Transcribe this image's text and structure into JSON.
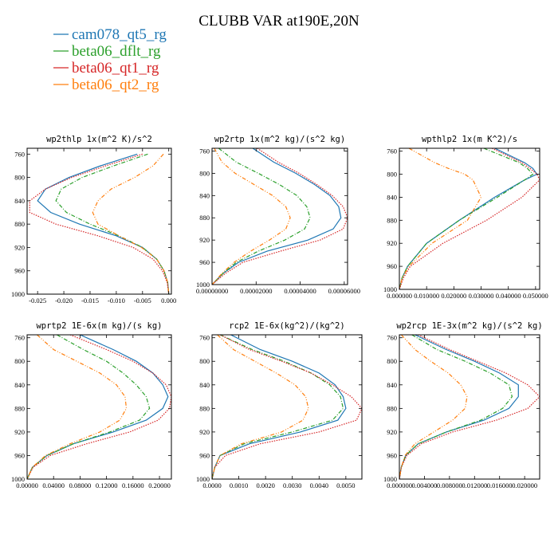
{
  "figure": {
    "title": "CLUBB VAR at190E,20N"
  },
  "legend": [
    {
      "name": "cam078_qt5_rg",
      "color": "#1f77b4",
      "dash": "solid"
    },
    {
      "name": "beta06_dflt_rg",
      "color": "#2ca02c",
      "dash": "dashdot"
    },
    {
      "name": "beta06_qt1_rg",
      "color": "#d62728",
      "dash": "dotted"
    },
    {
      "name": "beta06_qt2_rg",
      "color": "#ff7f0e",
      "dash": "dashdotdot"
    }
  ],
  "chart_data": [
    {
      "type": "line",
      "title": "wp2thlp  1x(m^2 K)/s^2",
      "xlim": [
        -0.027,
        0.0005
      ],
      "ylim": [
        1000,
        750
      ],
      "xticks": [
        -0.025,
        -0.02,
        -0.015,
        -0.01,
        -0.005,
        0.0
      ],
      "xtick_labels": [
        "-0.025",
        "-0.020",
        "-0.015",
        "-0.010",
        "-0.005",
        "0.000"
      ],
      "yticks": [
        760,
        800,
        840,
        880,
        920,
        960,
        1000
      ],
      "ytick_labels": [
        "760",
        "800",
        "840",
        "880",
        "920",
        "960",
        "1000"
      ],
      "y": [
        760,
        780,
        800,
        820,
        840,
        860,
        880,
        900,
        920,
        940,
        960,
        980,
        1000
      ],
      "series": [
        {
          "name": "cam078_qt5_rg",
          "values": [
            -0.006,
            -0.013,
            -0.019,
            -0.0235,
            -0.025,
            -0.0225,
            -0.017,
            -0.01,
            -0.005,
            -0.0023,
            -0.0009,
            -0.0002,
            0.0
          ]
        },
        {
          "name": "beta06_dflt_rg",
          "values": [
            -0.004,
            -0.0105,
            -0.0165,
            -0.0205,
            -0.0215,
            -0.0195,
            -0.015,
            -0.0095,
            -0.005,
            -0.0023,
            -0.0009,
            -0.0002,
            0.0
          ]
        },
        {
          "name": "beta06_qt1_rg",
          "values": [
            -0.005,
            -0.012,
            -0.0185,
            -0.0235,
            -0.0265,
            -0.0265,
            -0.0215,
            -0.0135,
            -0.0068,
            -0.003,
            -0.0012,
            -0.0003,
            0.0
          ]
        },
        {
          "name": "beta06_qt2_rg",
          "values": [
            -0.001,
            -0.003,
            -0.0065,
            -0.011,
            -0.0135,
            -0.0145,
            -0.0135,
            -0.0095,
            -0.0052,
            -0.0023,
            -0.0009,
            -0.0002,
            0.0
          ]
        }
      ]
    },
    {
      "type": "line",
      "title": "wp2rtp  1x(m^2 kg)/(s^2 kg)",
      "xlim": [
        0,
        6.15e-05
      ],
      "ylim": [
        1000,
        755
      ],
      "xticks": [
        0.0,
        2e-05,
        4e-05,
        6e-05
      ],
      "xtick_labels": [
        "0.00000000",
        "0.00002000",
        "0.00004000",
        "0.00006000"
      ],
      "yticks": [
        760,
        800,
        840,
        880,
        920,
        960,
        1000
      ],
      "ytick_labels": [
        "760",
        "800",
        "840",
        "880",
        "920",
        "960",
        "1000"
      ],
      "y": [
        755,
        780,
        800,
        820,
        840,
        860,
        880,
        900,
        920,
        940,
        960,
        980,
        1000
      ],
      "series": [
        {
          "name": "cam078_qt5_rg",
          "values": [
            1.85e-05,
            2.8e-05,
            3.8e-05,
            4.65e-05,
            5.35e-05,
            5.75e-05,
            5.85e-05,
            5.5e-05,
            4.35e-05,
            2.5e-05,
            1.2e-05,
            5e-06,
            0.0
          ]
        },
        {
          "name": "beta06_dflt_rg",
          "values": [
            3e-06,
            1.1e-05,
            2.1e-05,
            3.05e-05,
            3.85e-05,
            4.3e-05,
            4.45e-05,
            4.2e-05,
            3.3e-05,
            2.1e-05,
            1.1e-05,
            5e-06,
            0.0
          ]
        },
        {
          "name": "beta06_qt1_rg",
          "values": [
            2.05e-05,
            3e-05,
            3.95e-05,
            4.75e-05,
            5.45e-05,
            5.95e-05,
            6.15e-05,
            5.95e-05,
            4.9e-05,
            3.1e-05,
            1.4e-05,
            6e-06,
            0.0
          ]
        },
        {
          "name": "beta06_qt2_rg",
          "values": [
            1e-06,
            4.5e-06,
            1.05e-05,
            1.9e-05,
            2.75e-05,
            3.35e-05,
            3.55e-05,
            3.35e-05,
            2.6e-05,
            1.75e-05,
            1e-05,
            4.5e-06,
            0.0
          ]
        }
      ]
    },
    {
      "type": "line",
      "title": "wpthlp2  1x(m K^2)/s",
      "xlim": [
        0,
        0.0515
      ],
      "ylim": [
        1000,
        755
      ],
      "xticks": [
        0.0,
        0.01,
        0.02,
        0.03,
        0.04,
        0.05
      ],
      "xtick_labels": [
        "0.000000",
        "0.010000",
        "0.020000",
        "0.030000",
        "0.040000",
        "0.050000"
      ],
      "yticks": [
        760,
        800,
        840,
        880,
        920,
        960,
        1000
      ],
      "ytick_labels": [
        "760",
        "800",
        "840",
        "880",
        "920",
        "960",
        "1000"
      ],
      "y": [
        755,
        780,
        790,
        800,
        810,
        840,
        880,
        920,
        960,
        980,
        1000
      ],
      "series": [
        {
          "name": "cam078_qt5_rg",
          "values": [
            0.035,
            0.046,
            0.049,
            0.0505,
            0.046,
            0.035,
            0.022,
            0.01,
            0.003,
            0.001,
            0.0
          ]
        },
        {
          "name": "beta06_dflt_rg",
          "values": [
            0.031,
            0.044,
            0.047,
            0.049,
            0.046,
            0.036,
            0.022,
            0.01,
            0.003,
            0.001,
            0.0
          ]
        },
        {
          "name": "beta06_qt1_rg",
          "values": [
            0.034,
            0.045,
            0.048,
            0.0505,
            0.0515,
            0.045,
            0.032,
            0.016,
            0.004,
            0.0015,
            0.0
          ]
        },
        {
          "name": "beta06_qt2_rg",
          "values": [
            0.0035,
            0.013,
            0.018,
            0.024,
            0.027,
            0.03,
            0.025,
            0.012,
            0.0035,
            0.001,
            0.0
          ]
        }
      ]
    },
    {
      "type": "line",
      "title": "wprtp2  1E-6x(m kg)/(s kg)",
      "xlim": [
        0,
        0.218
      ],
      "ylim": [
        1000,
        755
      ],
      "xticks": [
        0.0,
        0.04,
        0.08,
        0.12,
        0.16,
        0.2
      ],
      "xtick_labels": [
        "0.00000",
        "0.04000",
        "0.08000",
        "0.12000",
        "0.16000",
        "0.20000"
      ],
      "yticks": [
        760,
        800,
        840,
        880,
        920,
        960,
        1000
      ],
      "ytick_labels": [
        "760",
        "800",
        "840",
        "880",
        "920",
        "960",
        "1000"
      ],
      "y": [
        755,
        780,
        800,
        820,
        840,
        860,
        880,
        900,
        920,
        940,
        960,
        980,
        1000
      ],
      "series": [
        {
          "name": "cam078_qt5_rg",
          "values": [
            0.08,
            0.13,
            0.165,
            0.19,
            0.205,
            0.213,
            0.205,
            0.18,
            0.13,
            0.07,
            0.03,
            0.008,
            0.0
          ]
        },
        {
          "name": "beta06_dflt_rg",
          "values": [
            0.045,
            0.085,
            0.12,
            0.145,
            0.165,
            0.18,
            0.185,
            0.17,
            0.125,
            0.07,
            0.03,
            0.008,
            0.0
          ]
        },
        {
          "name": "beta06_qt1_rg",
          "values": [
            0.065,
            0.12,
            0.16,
            0.19,
            0.21,
            0.218,
            0.215,
            0.198,
            0.155,
            0.09,
            0.035,
            0.009,
            0.0
          ]
        },
        {
          "name": "beta06_qt2_rg",
          "values": [
            0.015,
            0.04,
            0.075,
            0.11,
            0.135,
            0.148,
            0.15,
            0.14,
            0.11,
            0.065,
            0.028,
            0.008,
            0.0
          ]
        }
      ]
    },
    {
      "type": "line",
      "title": "rcp2  1E-6x(kg^2)/(kg^2)",
      "xlim": [
        0,
        0.0056
      ],
      "ylim": [
        1000,
        755
      ],
      "xticks": [
        0.0,
        0.001,
        0.002,
        0.003,
        0.004,
        0.005
      ],
      "xtick_labels": [
        "0.0000",
        "0.0010",
        "0.0020",
        "0.0030",
        "0.0040",
        "0.0050"
      ],
      "yticks": [
        760,
        800,
        840,
        880,
        920,
        960,
        1000
      ],
      "ytick_labels": [
        "760",
        "800",
        "840",
        "880",
        "920",
        "960",
        "1000"
      ],
      "y": [
        755,
        780,
        800,
        820,
        840,
        860,
        880,
        900,
        920,
        940,
        960,
        980,
        1000
      ],
      "series": [
        {
          "name": "cam078_qt5_rg",
          "values": [
            0.0007,
            0.0018,
            0.003,
            0.004,
            0.0046,
            0.0049,
            0.005,
            0.0047,
            0.0033,
            0.0014,
            0.0003,
            0.0001,
            0.0
          ]
        },
        {
          "name": "beta06_dflt_rg",
          "values": [
            0.0003,
            0.0015,
            0.0027,
            0.0037,
            0.0044,
            0.0048,
            0.0049,
            0.0045,
            0.003,
            0.0012,
            0.0003,
            0.0001,
            0.0
          ]
        },
        {
          "name": "beta06_qt1_rg",
          "values": [
            0.0003,
            0.0014,
            0.0026,
            0.0037,
            0.0045,
            0.0052,
            0.0056,
            0.0054,
            0.004,
            0.0018,
            0.0005,
            0.0001,
            0.0
          ]
        },
        {
          "name": "beta06_qt2_rg",
          "values": [
            0.0002,
            0.0008,
            0.0016,
            0.0024,
            0.0031,
            0.0035,
            0.0036,
            0.0034,
            0.0026,
            0.0011,
            0.0003,
            0.0001,
            0.0
          ]
        }
      ]
    },
    {
      "type": "line",
      "title": "wp2rcp  1E-3x(m^2 kg)/(s^2 kg)",
      "xlim": [
        0,
        0.0224
      ],
      "ylim": [
        1000,
        755
      ],
      "xticks": [
        0.0,
        0.004,
        0.008,
        0.012,
        0.016,
        0.02
      ],
      "xtick_labels": [
        "0.000000",
        "0.004000",
        "0.008000",
        "0.012000",
        "0.016000",
        "0.020000"
      ],
      "yticks": [
        760,
        800,
        840,
        880,
        920,
        960,
        1000
      ],
      "ytick_labels": [
        "760",
        "800",
        "840",
        "880",
        "920",
        "960",
        "1000"
      ],
      "y": [
        755,
        780,
        800,
        820,
        840,
        860,
        880,
        900,
        920,
        940,
        960,
        980,
        1000
      ],
      "series": [
        {
          "name": "cam078_qt5_rg",
          "values": [
            0.0025,
            0.0075,
            0.012,
            0.016,
            0.019,
            0.019,
            0.0175,
            0.0135,
            0.0075,
            0.003,
            0.001,
            0.0003,
            0.0
          ]
        },
        {
          "name": "beta06_dflt_rg",
          "values": [
            0.002,
            0.006,
            0.0105,
            0.0145,
            0.0175,
            0.018,
            0.0165,
            0.013,
            0.0075,
            0.003,
            0.001,
            0.0003,
            0.0
          ]
        },
        {
          "name": "beta06_qt1_rg",
          "values": [
            0.003,
            0.008,
            0.0125,
            0.017,
            0.0205,
            0.0224,
            0.0205,
            0.0155,
            0.0085,
            0.0035,
            0.0012,
            0.0003,
            0.0
          ]
        },
        {
          "name": "beta06_qt2_rg",
          "values": [
            0.0003,
            0.0025,
            0.005,
            0.0078,
            0.0098,
            0.0108,
            0.0105,
            0.0085,
            0.0055,
            0.0025,
            0.0009,
            0.0003,
            0.0
          ]
        }
      ]
    }
  ]
}
